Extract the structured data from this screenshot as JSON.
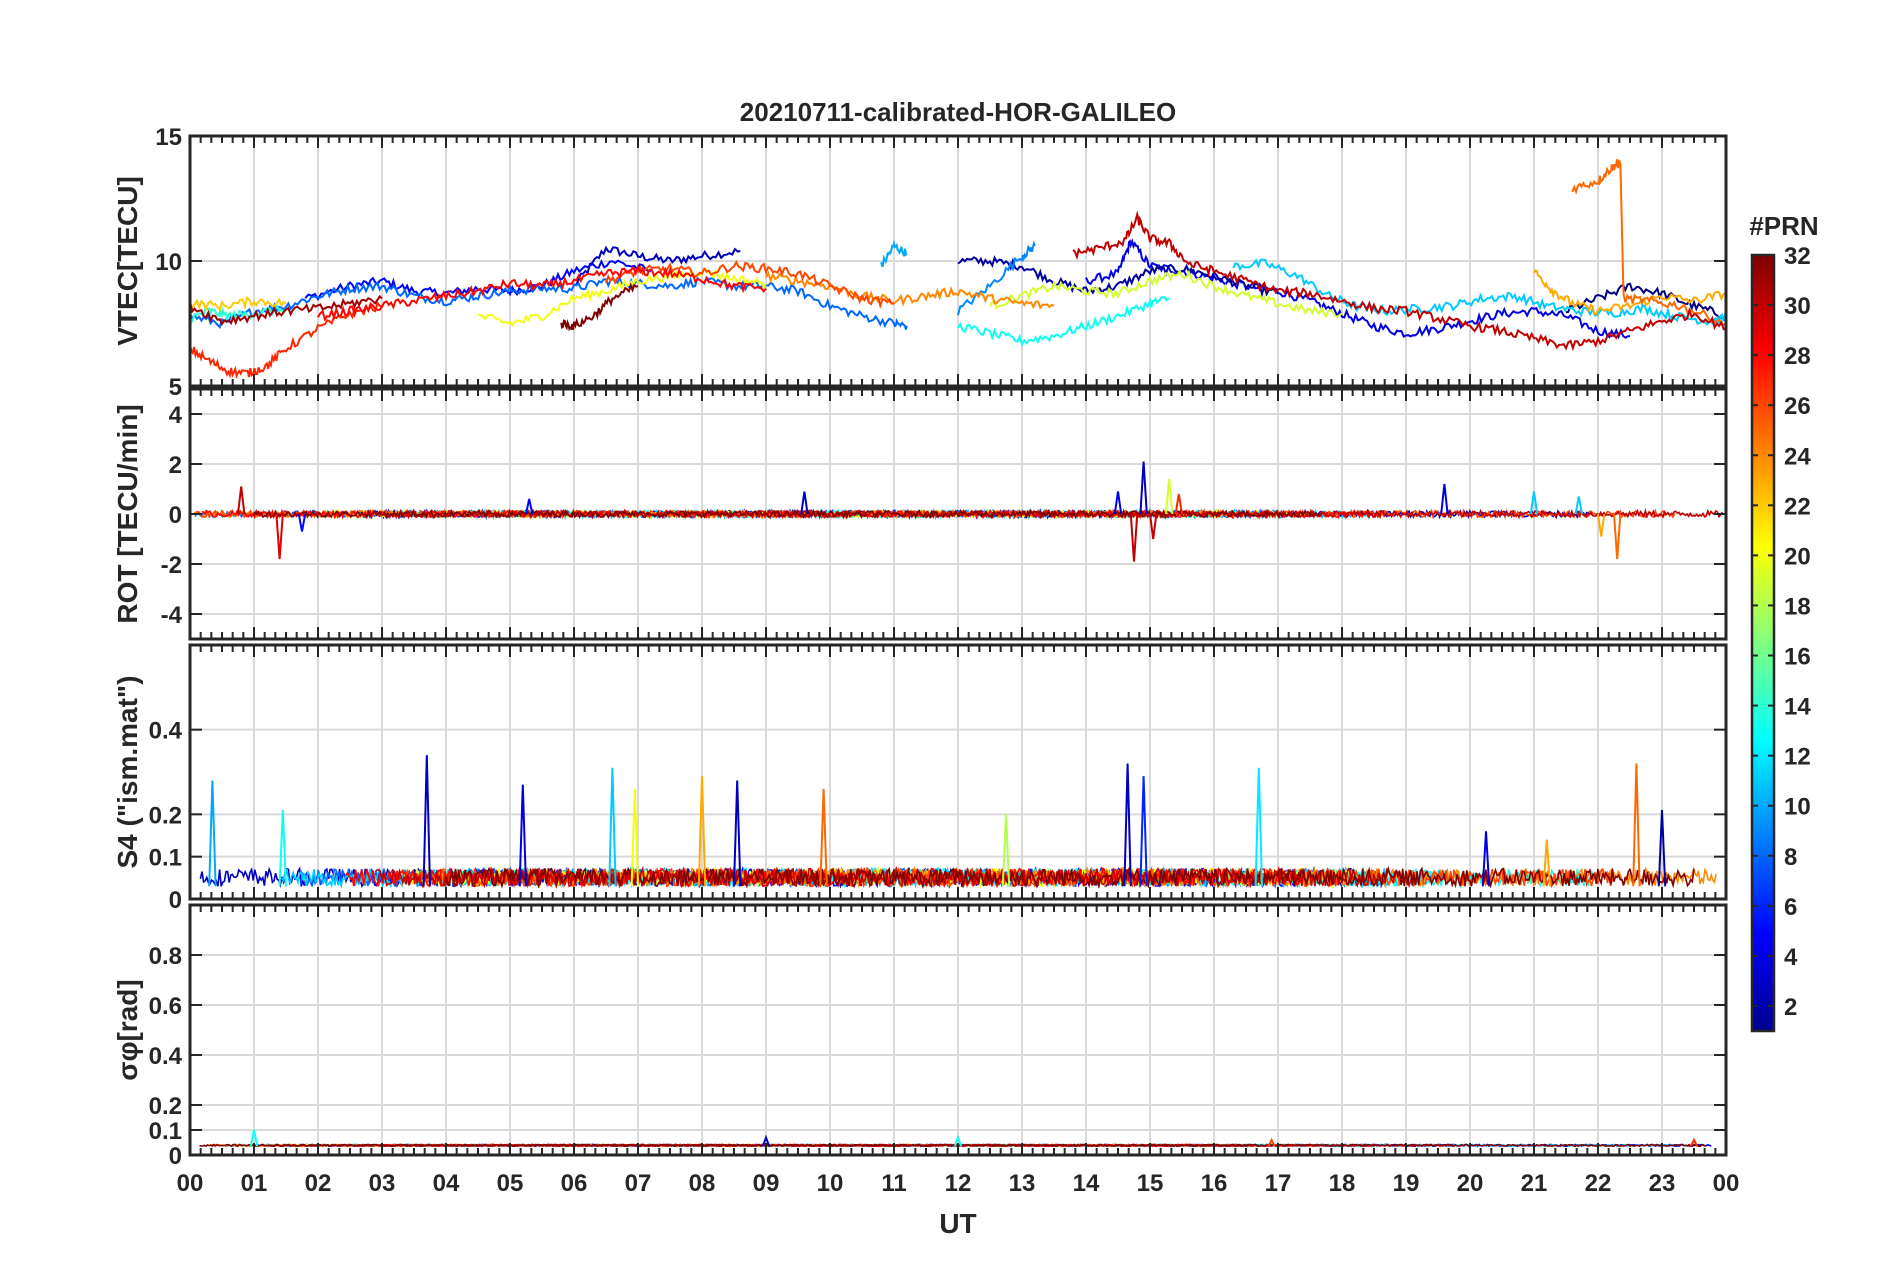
{
  "title": "20210711-calibrated-HOR-GALILEO",
  "xlabel": "UT",
  "x_tick_labels": [
    "00",
    "01",
    "02",
    "03",
    "04",
    "05",
    "06",
    "07",
    "08",
    "09",
    "10",
    "11",
    "12",
    "13",
    "14",
    "15",
    "16",
    "17",
    "18",
    "19",
    "20",
    "21",
    "22",
    "23",
    "00"
  ],
  "colorbar": {
    "title": "#PRN",
    "min": 1,
    "max": 32,
    "ticks": [
      2,
      4,
      6,
      8,
      10,
      12,
      14,
      16,
      18,
      20,
      22,
      24,
      26,
      28,
      30,
      32
    ],
    "tick_labels": [
      "2",
      "4",
      "6",
      "8",
      "10",
      "12",
      "14",
      "16",
      "18",
      "20",
      "22",
      "24",
      "26",
      "28",
      "30",
      "32"
    ]
  },
  "chart_data": [
    {
      "type": "line",
      "ylabel": "VTEC[TECU]",
      "xlim": [
        0,
        24
      ],
      "ylim": [
        5,
        15
      ],
      "yticks": [
        5,
        10,
        15
      ],
      "ytick_labels": [
        "5",
        "10",
        "15"
      ],
      "grid": true,
      "series": [
        {
          "prn": 3,
          "x": [
            6.0,
            6.5,
            7.0,
            7.5,
            8.0,
            8.6
          ],
          "y": [
            9.0,
            10.5,
            10.2,
            10.0,
            10.2,
            10.4
          ]
        },
        {
          "prn": 5,
          "x": [
            1.8,
            2.5,
            3.0,
            3.5,
            4.0,
            4.5,
            5.0,
            5.5,
            6.0,
            6.6,
            7.2
          ],
          "y": [
            8.5,
            9.0,
            9.2,
            8.8,
            8.7,
            8.9,
            8.8,
            9.0,
            9.6,
            10.0,
            9.6
          ]
        },
        {
          "prn": 4,
          "x": [
            14.0,
            14.5,
            14.7,
            15.0,
            15.5,
            16.0,
            16.5,
            17.0,
            17.5,
            18.0,
            18.5,
            19.0,
            19.5,
            20.0,
            20.5,
            21.0,
            21.5,
            22.0,
            22.5
          ],
          "y": [
            9.2,
            9.5,
            10.8,
            9.8,
            9.6,
            9.3,
            9.0,
            8.8,
            8.4,
            7.9,
            7.4,
            7.1,
            7.3,
            7.6,
            7.9,
            8.0,
            7.8,
            7.2,
            7.0
          ]
        },
        {
          "prn": 2,
          "x": [
            12.0,
            12.5,
            13.0,
            13.5,
            14.0,
            14.5,
            15.0,
            15.5,
            16.0,
            16.5,
            17.0
          ],
          "y": [
            10.0,
            10.0,
            9.8,
            9.2,
            8.8,
            9.0,
            9.6,
            9.7,
            9.4,
            9.0,
            8.7
          ]
        },
        {
          "prn": 1,
          "x": [
            21.5,
            22.0,
            22.5,
            23.0,
            23.5,
            24.0
          ],
          "y": [
            8.0,
            8.5,
            9.0,
            8.7,
            8.2,
            7.8
          ]
        },
        {
          "prn": 8,
          "x": [
            0.0,
            0.5,
            1.0,
            1.5,
            2.0,
            2.5,
            3.0,
            3.5,
            4.0,
            4.5,
            5.0,
            5.5,
            6.0,
            6.5,
            7.0,
            7.5,
            8.0,
            8.5,
            9.0,
            9.5,
            10.0,
            10.5,
            11.0,
            11.2
          ],
          "y": [
            7.8,
            7.5,
            8.0,
            8.2,
            8.6,
            8.9,
            9.0,
            8.6,
            8.4,
            8.6,
            8.8,
            8.9,
            8.9,
            9.2,
            9.1,
            9.0,
            9.2,
            9.0,
            9.0,
            8.8,
            8.2,
            7.8,
            7.5,
            7.4
          ]
        },
        {
          "prn": 10,
          "x": [
            10.8,
            11.0,
            11.2
          ],
          "y": [
            9.8,
            10.6,
            10.3
          ]
        },
        {
          "prn": 9,
          "x": [
            12.0,
            12.5,
            13.0,
            13.2
          ],
          "y": [
            8.0,
            9.0,
            10.2,
            10.6
          ]
        },
        {
          "prn": 11,
          "x": [
            16.3,
            16.8,
            17.3,
            17.8,
            18.2,
            18.7,
            19.2,
            19.7,
            20.2,
            20.7,
            21.2,
            21.7,
            22.2,
            22.7,
            23.2,
            23.7,
            24.0
          ],
          "y": [
            9.8,
            9.9,
            9.4,
            8.6,
            8.2,
            8.0,
            8.1,
            8.2,
            8.5,
            8.6,
            8.2,
            8.0,
            7.9,
            8.1,
            7.8,
            7.6,
            7.7
          ]
        },
        {
          "prn": 13,
          "x": [
            12.0,
            12.5,
            13.0,
            13.5,
            14.0,
            14.5,
            15.0,
            15.3
          ],
          "y": [
            7.4,
            7.1,
            6.8,
            7.0,
            7.4,
            7.8,
            8.3,
            8.5
          ]
        },
        {
          "prn": 14,
          "x": [
            0.0,
            0.3,
            0.6,
            1.0,
            1.5
          ],
          "y": [
            7.7,
            8.0,
            7.8,
            7.9,
            8.1
          ]
        },
        {
          "prn": 20,
          "x": [
            4.5,
            5.0,
            5.5,
            6.0,
            6.5,
            7.0,
            7.5,
            8.0,
            8.5,
            9.0
          ],
          "y": [
            7.8,
            7.5,
            7.8,
            8.5,
            8.8,
            9.2,
            9.4,
            9.6,
            9.3,
            9.1
          ]
        },
        {
          "prn": 19,
          "x": [
            12.5,
            13.0,
            13.5,
            14.0,
            14.5,
            15.0,
            15.5,
            16.0,
            16.5,
            17.0,
            17.5,
            18.0
          ],
          "y": [
            8.2,
            8.6,
            9.0,
            8.8,
            8.7,
            9.2,
            9.5,
            9.0,
            8.6,
            8.3,
            8.0,
            7.9
          ]
        },
        {
          "prn": 22,
          "x": [
            0.0,
            0.5,
            1.0,
            1.5
          ],
          "y": [
            8.3,
            8.2,
            8.4,
            8.3
          ]
        },
        {
          "prn": 23,
          "x": [
            21.0,
            21.3,
            21.6,
            22.0,
            22.5,
            23.0,
            23.5,
            24.0
          ],
          "y": [
            9.6,
            8.8,
            8.3,
            8.0,
            8.2,
            8.6,
            8.4,
            8.7
          ]
        },
        {
          "prn": 24,
          "x": [
            9.0,
            9.5,
            10.0,
            10.5,
            11.0,
            11.5,
            12.0,
            12.5,
            13.0,
            13.5
          ],
          "y": [
            9.4,
            9.2,
            9.0,
            8.6,
            8.4,
            8.6,
            8.8,
            8.5,
            8.3,
            8.2
          ]
        },
        {
          "prn": 25,
          "x": [
            21.6,
            22.0,
            22.2,
            22.3,
            22.35,
            22.4,
            22.8,
            23.3,
            24.0
          ],
          "y": [
            12.9,
            13.2,
            13.7,
            13.9,
            13.9,
            8.5,
            8.4,
            8.2,
            7.5
          ]
        },
        {
          "prn": 26,
          "x": [
            6.5,
            7.0,
            7.5,
            8.0,
            8.5,
            9.0,
            9.5,
            10.0,
            10.5,
            11.0
          ],
          "y": [
            9.2,
            9.6,
            9.7,
            9.5,
            9.8,
            9.7,
            9.5,
            9.0,
            8.5,
            8.3
          ]
        },
        {
          "prn": 27,
          "x": [
            0.0,
            0.3,
            0.6,
            0.9,
            1.2,
            1.5,
            2.0,
            2.5,
            3.0
          ],
          "y": [
            6.5,
            6.0,
            5.6,
            5.5,
            5.8,
            6.5,
            7.3,
            7.9,
            8.2
          ]
        },
        {
          "prn": 28,
          "x": [
            2.0,
            2.5,
            3.0,
            3.5,
            4.0,
            4.5,
            5.0,
            5.5,
            6.0,
            6.5,
            7.0,
            7.5,
            8.0,
            8.5,
            9.0
          ],
          "y": [
            7.8,
            8.0,
            8.2,
            8.4,
            8.6,
            8.8,
            9.1,
            9.0,
            9.2,
            9.5,
            9.6,
            9.5,
            9.3,
            9.0,
            8.9
          ]
        },
        {
          "prn": 30,
          "x": [
            13.8,
            14.2,
            14.6,
            14.8,
            15.0,
            15.3,
            15.6,
            16.0,
            16.5,
            17.0,
            17.5,
            18.0,
            18.5,
            19.0,
            19.5,
            20.0,
            20.5,
            21.0,
            21.5,
            22.0,
            22.5,
            23.0,
            23.5,
            24.0
          ],
          "y": [
            10.3,
            10.5,
            10.8,
            11.7,
            10.9,
            10.7,
            9.9,
            9.6,
            9.2,
            8.8,
            8.7,
            8.4,
            8.1,
            8.0,
            7.7,
            7.4,
            7.2,
            6.9,
            6.6,
            6.8,
            7.2,
            7.6,
            7.9,
            7.3
          ]
        },
        {
          "prn": 31,
          "x": [
            0.0,
            0.5,
            1.0,
            1.5,
            2.0,
            2.5,
            3.0
          ],
          "y": [
            8.2,
            7.6,
            7.8,
            8.0,
            8.1,
            8.3,
            8.5
          ]
        },
        {
          "prn": 32,
          "x": [
            5.8,
            6.0,
            6.3,
            6.6,
            7.0
          ],
          "y": [
            7.5,
            7.4,
            7.8,
            8.5,
            9.0
          ]
        }
      ]
    },
    {
      "type": "line",
      "ylabel": "ROT [TECU/min]",
      "xlim": [
        0,
        24
      ],
      "ylim": [
        -5,
        5
      ],
      "yticks": [
        -4,
        -2,
        0,
        2,
        4
      ],
      "ytick_labels": [
        "-4",
        "-2",
        "0",
        "2",
        "4"
      ],
      "grid": true,
      "baseline": 0,
      "noise_amplitude": 0.25,
      "spikes": [
        {
          "x": 0.8,
          "y": 1.1,
          "prn": 30
        },
        {
          "x": 1.4,
          "y": -1.8,
          "prn": 29
        },
        {
          "x": 1.75,
          "y": -0.7,
          "prn": 5
        },
        {
          "x": 5.3,
          "y": 0.6,
          "prn": 5
        },
        {
          "x": 9.6,
          "y": 0.9,
          "prn": 3
        },
        {
          "x": 14.5,
          "y": 0.9,
          "prn": 4
        },
        {
          "x": 14.75,
          "y": -1.9,
          "prn": 30
        },
        {
          "x": 14.9,
          "y": 2.1,
          "prn": 3
        },
        {
          "x": 15.05,
          "y": -1.0,
          "prn": 30
        },
        {
          "x": 15.3,
          "y": 1.4,
          "prn": 19
        },
        {
          "x": 15.45,
          "y": 0.8,
          "prn": 27
        },
        {
          "x": 19.6,
          "y": 1.2,
          "prn": 4
        },
        {
          "x": 21.0,
          "y": 0.9,
          "prn": 11
        },
        {
          "x": 21.7,
          "y": 0.7,
          "prn": 11
        },
        {
          "x": 22.3,
          "y": -1.8,
          "prn": 25
        },
        {
          "x": 22.05,
          "y": -0.9,
          "prn": 23
        }
      ]
    },
    {
      "type": "line",
      "ylabel": "S4 (\"ism.mat\")",
      "xlim": [
        0,
        24
      ],
      "ylim": [
        0,
        0.6
      ],
      "yticks": [
        0,
        0.1,
        0.2,
        0.4
      ],
      "ytick_labels": [
        "0",
        "0.1",
        "0.2",
        "0.4"
      ],
      "grid": true,
      "baseline": 0.03,
      "noise_amplitude": 0.07,
      "spikes": [
        {
          "x": 0.35,
          "y": 0.28,
          "prn": 10
        },
        {
          "x": 1.45,
          "y": 0.21,
          "prn": 13
        },
        {
          "x": 3.7,
          "y": 0.34,
          "prn": 3
        },
        {
          "x": 5.2,
          "y": 0.27,
          "prn": 4
        },
        {
          "x": 6.6,
          "y": 0.31,
          "prn": 11
        },
        {
          "x": 6.95,
          "y": 0.26,
          "prn": 20
        },
        {
          "x": 8.0,
          "y": 0.29,
          "prn": 23
        },
        {
          "x": 8.55,
          "y": 0.28,
          "prn": 3
        },
        {
          "x": 9.9,
          "y": 0.26,
          "prn": 25
        },
        {
          "x": 12.75,
          "y": 0.2,
          "prn": 18
        },
        {
          "x": 14.65,
          "y": 0.32,
          "prn": 3
        },
        {
          "x": 14.9,
          "y": 0.29,
          "prn": 6
        },
        {
          "x": 16.7,
          "y": 0.31,
          "prn": 12
        },
        {
          "x": 20.25,
          "y": 0.16,
          "prn": 4
        },
        {
          "x": 21.2,
          "y": 0.14,
          "prn": 23
        },
        {
          "x": 22.6,
          "y": 0.32,
          "prn": 25
        },
        {
          "x": 23.0,
          "y": 0.21,
          "prn": 2
        }
      ]
    },
    {
      "type": "line",
      "ylabel": "σφ[rad]",
      "xlim": [
        0,
        24
      ],
      "ylim": [
        0,
        1
      ],
      "yticks": [
        0,
        0.1,
        0.2,
        0.4,
        0.6,
        0.8
      ],
      "ytick_labels": [
        "0",
        "0.1",
        "0.2",
        "0.4",
        "0.6",
        "0.8"
      ],
      "grid": true,
      "baseline": 0.035,
      "noise_amplitude": 0.012,
      "spikes": [
        {
          "x": 1.0,
          "y": 0.1,
          "prn": 13
        },
        {
          "x": 9.0,
          "y": 0.07,
          "prn": 3
        },
        {
          "x": 12.0,
          "y": 0.07,
          "prn": 13
        },
        {
          "x": 16.9,
          "y": 0.06,
          "prn": 26
        },
        {
          "x": 23.5,
          "y": 0.06,
          "prn": 27
        }
      ]
    }
  ]
}
